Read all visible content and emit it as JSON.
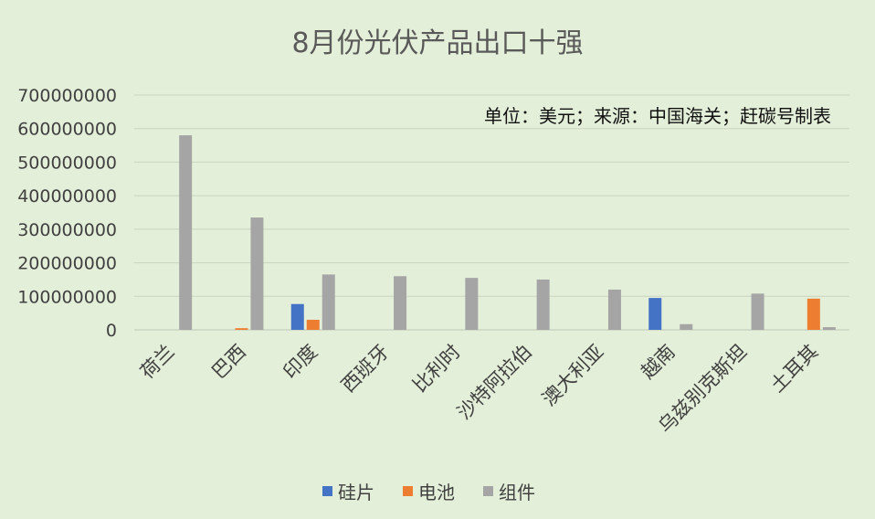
{
  "chart_data": {
    "type": "bar",
    "title": "8月份光伏产品出口十强",
    "annotation": "单位：美元；来源：中国海关；赶碳号制表",
    "categories": [
      "荷兰",
      "巴西",
      "印度",
      "西班牙",
      "比利时",
      "沙特阿拉伯",
      "澳大利亚",
      "越南",
      "乌兹别克斯坦",
      "土耳其"
    ],
    "series": [
      {
        "name": "硅片",
        "color": "#4472c4",
        "values": [
          0,
          0,
          77000000,
          0,
          0,
          0,
          0,
          95000000,
          0,
          0
        ]
      },
      {
        "name": "电池",
        "color": "#ed7d31",
        "values": [
          0,
          5000000,
          30000000,
          0,
          0,
          0,
          0,
          0,
          0,
          93000000
        ]
      },
      {
        "name": "组件",
        "color": "#a5a5a5",
        "values": [
          580000000,
          335000000,
          165000000,
          160000000,
          155000000,
          150000000,
          120000000,
          17000000,
          108000000,
          8000000
        ]
      }
    ],
    "ylim": [
      0,
      700000000
    ],
    "yticks": [
      "0",
      "100000000",
      "200000000",
      "300000000",
      "400000000",
      "500000000",
      "600000000",
      "700000000"
    ],
    "grid": true,
    "legend_position": "bottom"
  }
}
